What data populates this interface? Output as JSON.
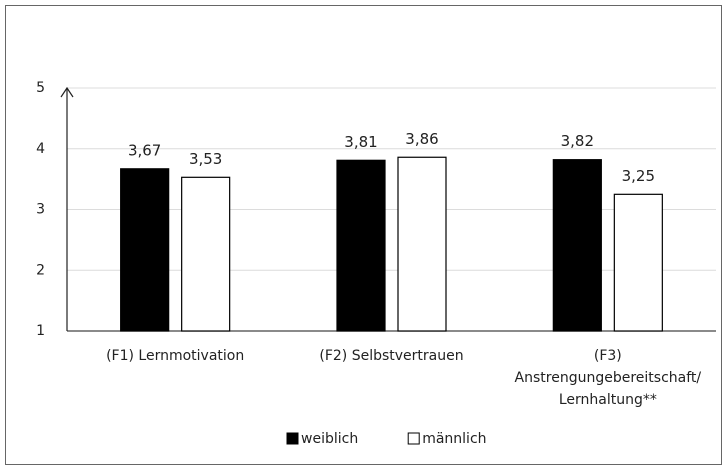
{
  "chart_data": {
    "type": "bar",
    "categories": [
      "(F1) Lernmotivation",
      "(F2) Selbstvertrauen",
      "(F3)\nAnstrengungebereitschaft/\nLernhaltung**"
    ],
    "series": [
      {
        "name": "weiblich",
        "color": "#000000",
        "values": [
          3.67,
          3.81,
          3.82
        ],
        "value_labels": [
          "3,67",
          "3,81",
          "3,82"
        ]
      },
      {
        "name": "männlich",
        "color": "#ffffff",
        "values": [
          3.53,
          3.86,
          3.25
        ],
        "value_labels": [
          "3,53",
          "3,86",
          "3,25"
        ]
      }
    ],
    "ylim": [
      1,
      5
    ],
    "yticks": [
      1,
      2,
      3,
      4,
      5
    ],
    "grid": true,
    "legend": "bottom"
  }
}
